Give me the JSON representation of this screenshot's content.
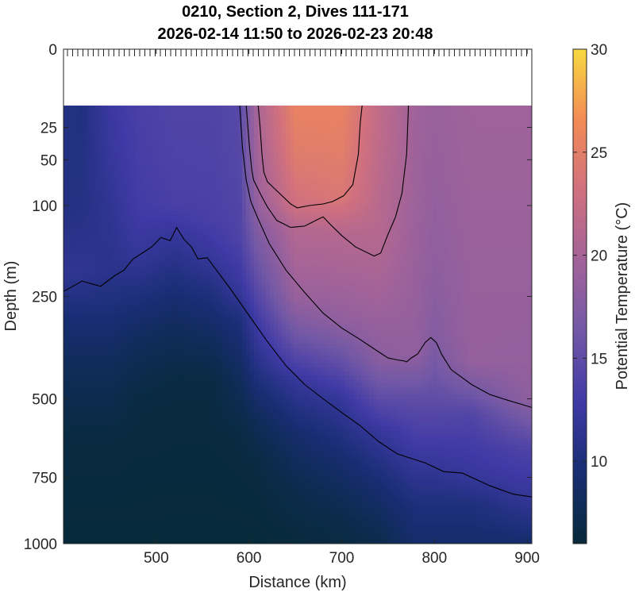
{
  "chart_data": {
    "type": "heatmap",
    "title": [
      "0210, Section 2, Dives 111-171",
      "2026-02-14 11:50 to 2026-02-23 20:48"
    ],
    "xlabel": "Distance (km)",
    "ylabel": "Depth (m)",
    "xlim": [
      400,
      905
    ],
    "ylim": [
      0,
      1000
    ],
    "y_axis_transform": "square-root (inverted, depth increasing downward)",
    "x_ticks": [
      500,
      600,
      700,
      800,
      900
    ],
    "y_ticks": [
      0,
      25,
      50,
      100,
      250,
      500,
      750,
      1000
    ],
    "colorbar": {
      "label": "Potential Temperature (°C)",
      "range": [
        6,
        30
      ],
      "ticks": [
        10,
        15,
        20,
        25,
        30
      ],
      "colormap": "thermal",
      "colors": [
        "#072a3a",
        "#172d72",
        "#3f3aa6",
        "#7258a6",
        "#a26399",
        "#d0707f",
        "#f38b55",
        "#f7d940"
      ]
    },
    "data_start_depth": 13,
    "grid": false,
    "contour_isotherms": [
      {
        "name": "25",
        "points": [
          [
            610,
            13
          ],
          [
            612,
            25
          ],
          [
            614,
            45
          ],
          [
            616,
            62
          ],
          [
            620,
            72
          ],
          [
            630,
            82
          ],
          [
            645,
            98
          ],
          [
            652,
            103
          ],
          [
            665,
            100
          ],
          [
            680,
            98
          ],
          [
            690,
            95
          ],
          [
            702,
            88
          ],
          [
            712,
            75
          ],
          [
            718,
            45
          ],
          [
            720,
            22
          ],
          [
            722,
            13
          ]
        ]
      },
      {
        "name": "22",
        "points": [
          [
            597,
            13
          ],
          [
            600,
            35
          ],
          [
            603,
            60
          ],
          [
            605,
            70
          ],
          [
            612,
            85
          ],
          [
            620,
            102
          ],
          [
            630,
            120
          ],
          [
            645,
            130
          ],
          [
            660,
            128
          ],
          [
            675,
            118
          ],
          [
            680,
            115
          ],
          [
            688,
            126
          ],
          [
            700,
            142
          ],
          [
            715,
            160
          ],
          [
            735,
            175
          ],
          [
            742,
            170
          ],
          [
            750,
            140
          ],
          [
            758,
            115
          ],
          [
            765,
            85
          ],
          [
            770,
            45
          ],
          [
            772,
            13
          ]
        ]
      },
      {
        "name": "18",
        "points": [
          [
            590,
            13
          ],
          [
            593,
            40
          ],
          [
            597,
            70
          ],
          [
            602,
            95
          ],
          [
            610,
            118
          ],
          [
            622,
            155
          ],
          [
            640,
            200
          ],
          [
            660,
            242
          ],
          [
            680,
            285
          ],
          [
            700,
            318
          ],
          [
            720,
            345
          ],
          [
            740,
            375
          ],
          [
            750,
            390
          ],
          [
            760,
            395
          ],
          [
            768,
            398
          ],
          [
            770,
            400
          ],
          [
            775,
            390
          ],
          [
            782,
            380
          ],
          [
            790,
            352
          ],
          [
            796,
            340
          ],
          [
            802,
            352
          ],
          [
            808,
            382
          ],
          [
            818,
            420
          ],
          [
            840,
            460
          ],
          [
            860,
            488
          ],
          [
            880,
            505
          ],
          [
            905,
            525
          ]
        ]
      },
      {
        "name": "12",
        "points": [
          [
            400,
            240
          ],
          [
            410,
            230
          ],
          [
            420,
            220
          ],
          [
            440,
            230
          ],
          [
            455,
            210
          ],
          [
            465,
            200
          ],
          [
            475,
            180
          ],
          [
            485,
            170
          ],
          [
            495,
            160
          ],
          [
            505,
            145
          ],
          [
            515,
            150
          ],
          [
            522,
            130
          ],
          [
            530,
            148
          ],
          [
            538,
            160
          ],
          [
            545,
            180
          ],
          [
            555,
            178
          ],
          [
            565,
            200
          ],
          [
            580,
            235
          ],
          [
            600,
            290
          ],
          [
            620,
            350
          ],
          [
            640,
            410
          ],
          [
            660,
            460
          ],
          [
            680,
            500
          ],
          [
            700,
            540
          ],
          [
            720,
            580
          ],
          [
            740,
            630
          ],
          [
            760,
            670
          ],
          [
            790,
            700
          ],
          [
            810,
            730
          ],
          [
            830,
            735
          ],
          [
            860,
            780
          ],
          [
            885,
            810
          ],
          [
            905,
            820
          ]
        ]
      }
    ],
    "temperature_columns": [
      {
        "x": 400,
        "layers": [
          [
            13,
            10.5
          ],
          [
            100,
            10.5
          ],
          [
            200,
            11.5
          ],
          [
            300,
            9.5
          ],
          [
            400,
            8
          ],
          [
            600,
            6.5
          ],
          [
            1000,
            6
          ]
        ]
      },
      {
        "x": 420,
        "layers": [
          [
            13,
            10.3
          ],
          [
            100,
            10.6
          ],
          [
            200,
            11.5
          ],
          [
            300,
            9.5
          ],
          [
            400,
            8
          ],
          [
            600,
            6.5
          ],
          [
            1000,
            6
          ]
        ]
      },
      {
        "x": 450,
        "layers": [
          [
            13,
            12.5
          ],
          [
            100,
            11.5
          ],
          [
            200,
            11.0
          ],
          [
            300,
            9.5
          ],
          [
            400,
            8
          ],
          [
            600,
            6.5
          ],
          [
            1000,
            6
          ]
        ]
      },
      {
        "x": 480,
        "layers": [
          [
            13,
            13.5
          ],
          [
            100,
            13.0
          ],
          [
            170,
            12.0
          ],
          [
            250,
            10
          ],
          [
            350,
            8
          ],
          [
            500,
            6.5
          ],
          [
            1000,
            6
          ]
        ]
      },
      {
        "x": 520,
        "layers": [
          [
            13,
            14.0
          ],
          [
            100,
            13.5
          ],
          [
            140,
            12.0
          ],
          [
            220,
            10
          ],
          [
            320,
            8
          ],
          [
            450,
            6.5
          ],
          [
            1000,
            6
          ]
        ]
      },
      {
        "x": 560,
        "layers": [
          [
            13,
            14.0
          ],
          [
            120,
            13.5
          ],
          [
            180,
            12.0
          ],
          [
            250,
            10
          ],
          [
            350,
            8
          ],
          [
            450,
            6.5
          ],
          [
            1000,
            6
          ]
        ]
      },
      {
        "x": 590,
        "layers": [
          [
            13,
            14.5
          ],
          [
            150,
            13.8
          ],
          [
            240,
            12.0
          ],
          [
            300,
            10
          ],
          [
            450,
            8
          ],
          [
            600,
            6.5
          ],
          [
            1000,
            6
          ]
        ]
      },
      {
        "x": 610,
        "layers": [
          [
            13,
            20.5
          ],
          [
            80,
            19.5
          ],
          [
            150,
            17
          ],
          [
            300,
            13
          ],
          [
            400,
            11
          ],
          [
            550,
            8
          ],
          [
            700,
            6.5
          ],
          [
            1000,
            6
          ]
        ]
      },
      {
        "x": 650,
        "layers": [
          [
            13,
            25.5
          ],
          [
            100,
            23
          ],
          [
            130,
            21
          ],
          [
            250,
            19
          ],
          [
            450,
            12
          ],
          [
            600,
            9
          ],
          [
            800,
            7
          ],
          [
            1000,
            6.2
          ]
        ]
      },
      {
        "x": 700,
        "layers": [
          [
            13,
            25.5
          ],
          [
            90,
            24
          ],
          [
            140,
            21
          ],
          [
            300,
            18.5
          ],
          [
            500,
            12
          ],
          [
            700,
            9
          ],
          [
            900,
            7
          ],
          [
            1000,
            6.5
          ]
        ]
      },
      {
        "x": 740,
        "layers": [
          [
            13,
            22.0
          ],
          [
            150,
            21
          ],
          [
            300,
            19
          ],
          [
            390,
            18
          ],
          [
            600,
            12
          ],
          [
            800,
            9
          ],
          [
            1000,
            7
          ]
        ]
      },
      {
        "x": 780,
        "layers": [
          [
            13,
            19.5
          ],
          [
            200,
            19
          ],
          [
            380,
            18.5
          ],
          [
            500,
            15
          ],
          [
            700,
            12
          ],
          [
            850,
            10
          ],
          [
            1000,
            9
          ]
        ]
      },
      {
        "x": 800,
        "layers": [
          [
            13,
            19.0
          ],
          [
            200,
            18.2
          ],
          [
            340,
            17.5
          ],
          [
            500,
            15
          ],
          [
            700,
            12
          ],
          [
            850,
            10
          ],
          [
            1000,
            9
          ]
        ]
      },
      {
        "x": 840,
        "layers": [
          [
            13,
            19.5
          ],
          [
            200,
            19
          ],
          [
            400,
            18.8
          ],
          [
            550,
            14
          ],
          [
            750,
            12
          ],
          [
            850,
            10
          ],
          [
            1000,
            9
          ]
        ]
      },
      {
        "x": 905,
        "layers": [
          [
            13,
            19.5
          ],
          [
            200,
            19
          ],
          [
            500,
            18.5
          ],
          [
            650,
            14
          ],
          [
            820,
            12
          ],
          [
            1000,
            9
          ]
        ]
      }
    ]
  }
}
